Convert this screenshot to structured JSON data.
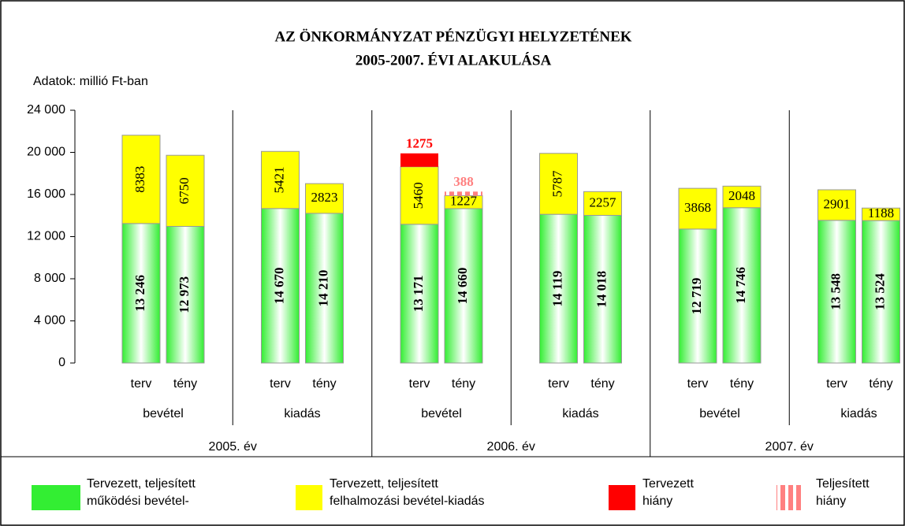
{
  "chart_data": {
    "type": "stacked-bar",
    "title": [
      "AZ ÖNKORMÁNYZAT PÉNZÜGYI HELYZETÉNEK",
      "2005-2007. ÉVI ALAKULÁSA"
    ],
    "annotation": "Adatok: millió Ft-ban",
    "categories": [
      "terv",
      "tény",
      "terv",
      "tény",
      "terv",
      "tény",
      "terv",
      "tény",
      "terv",
      "tény",
      "terv",
      "tény"
    ],
    "groups": [
      "bevétel",
      "kiadás",
      "bevétel",
      "kiadás",
      "bevétel",
      "kiadás"
    ],
    "years": [
      "2005. év",
      "2006. év",
      "2007. év"
    ],
    "series": [
      {
        "name": "Tervezett, teljesített\nműködési bevétel-",
        "color": "#33ee33",
        "values": [
          13246,
          12973,
          14670,
          14210,
          13171,
          14660,
          14119,
          14018,
          12719,
          14746,
          13548,
          13524
        ],
        "value_labels": [
          "13 246",
          "12 973",
          "14 670",
          "14 210",
          "13 171",
          "14 660",
          "14 119",
          "14 018",
          "12 719",
          "14 746",
          "13 548",
          "13 524"
        ]
      },
      {
        "name": "Tervezett, teljesített\nfelhalmozási bevétel-kiadás",
        "color": "#ffff00",
        "values": [
          8383,
          6750,
          5421,
          2823,
          5460,
          1227,
          5787,
          2257,
          3868,
          2048,
          2901,
          1188
        ]
      },
      {
        "name": "Tervezett\nhiány",
        "color": "#ff0000",
        "values": [
          null,
          null,
          null,
          null,
          1275,
          null,
          null,
          null,
          null,
          null,
          null,
          null
        ]
      },
      {
        "name": "Teljesített\nhiány",
        "color": "#ff8080",
        "hatch": true,
        "values": [
          null,
          null,
          null,
          null,
          null,
          388,
          null,
          null,
          null,
          null,
          null,
          null
        ]
      }
    ],
    "ylim": [
      0,
      24000
    ],
    "yticks": [
      0,
      {
        "value": 4000,
        "label": "4 000"
      },
      {
        "value": 8000,
        "label": "8 000"
      },
      {
        "value": 12000,
        "label": "12 000"
      },
      {
        "value": 16000,
        "label": "16 000"
      },
      {
        "value": 20000,
        "label": "20 000"
      },
      {
        "value": 24000,
        "label": "24 000"
      }
    ]
  }
}
